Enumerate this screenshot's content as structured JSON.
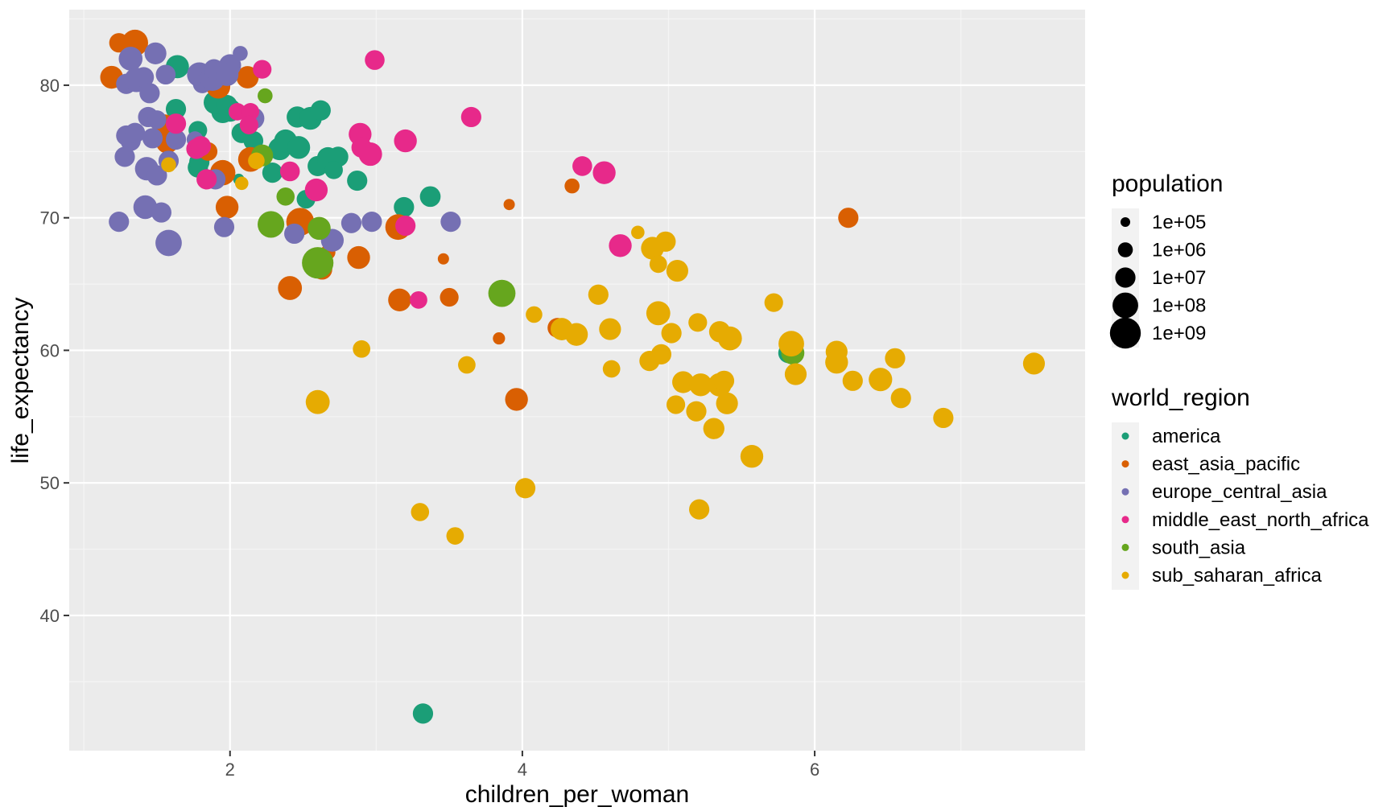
{
  "chart_data": {
    "type": "scatter",
    "title": "",
    "xlabel": "children_per_woman",
    "ylabel": "life_expectancy",
    "xlim": [
      0.9,
      7.85
    ],
    "ylim": [
      29.8,
      85.7
    ],
    "x_ticks": [
      2,
      4,
      6
    ],
    "y_ticks": [
      40,
      50,
      60,
      70,
      80
    ],
    "x_tick_labels": [
      "2",
      "4",
      "6"
    ],
    "y_tick_labels": [
      "40",
      "50",
      "60",
      "70",
      "80"
    ],
    "grid": true,
    "legend_position": "right",
    "size_legend": {
      "title": "population",
      "entries": [
        {
          "label": "1e+05",
          "value": 100000
        },
        {
          "label": "1e+06",
          "value": 1000000
        },
        {
          "label": "1e+07",
          "value": 10000000
        },
        {
          "label": "1e+08",
          "value": 100000000
        },
        {
          "label": "1e+09",
          "value": 1000000000
        }
      ]
    },
    "color_legend": {
      "title": "world_region",
      "entries": [
        {
          "name": "america",
          "color": "#1B9E77"
        },
        {
          "name": "east_asia_pacific",
          "color": "#D95F02"
        },
        {
          "name": "europe_central_asia",
          "color": "#7570B3"
        },
        {
          "name": "middle_east_north_africa",
          "color": "#E7298A"
        },
        {
          "name": "south_asia",
          "color": "#66A61E"
        },
        {
          "name": "sub_saharan_africa",
          "color": "#E6AB02"
        }
      ]
    },
    "series": [
      {
        "name": "america",
        "color": "#1B9E77",
        "points": [
          [
            1.64,
            81.4,
            35000000.0
          ],
          [
            1.78,
            76.6,
            5000000.0
          ],
          [
            1.78,
            73.8,
            10000000.0
          ],
          [
            1.63,
            78.2,
            10000000.0
          ],
          [
            1.79,
            74.2,
            10000000.0
          ],
          [
            1.95,
            78.0,
            30000000.0
          ],
          [
            1.9,
            78.7,
            40000000.0
          ],
          [
            2.0,
            78.1,
            30000000.0
          ],
          [
            1.98,
            78.5,
            10000000.0
          ],
          [
            2.08,
            76.4,
            10000000.0
          ],
          [
            2.16,
            75.8,
            8000000.0
          ],
          [
            2.29,
            73.4,
            10000000.0
          ],
          [
            2.34,
            75.2,
            30000000.0
          ],
          [
            2.38,
            75.8,
            30000000.0
          ],
          [
            2.46,
            77.6,
            15000000.0
          ],
          [
            2.47,
            75.3,
            30000000.0
          ],
          [
            2.55,
            77.5,
            30000000.0
          ],
          [
            2.62,
            78.1,
            10000000.0
          ],
          [
            2.6,
            73.9,
            10000000.0
          ],
          [
            2.68,
            74.5,
            10000000.0
          ],
          [
            2.67,
            74.5,
            20000000.0
          ],
          [
            2.74,
            74.6,
            10000000.0
          ],
          [
            2.71,
            73.6,
            4000000.0
          ],
          [
            2.87,
            72.8,
            10000000.0
          ],
          [
            2.52,
            71.4,
            5000000.0
          ],
          [
            2.06,
            72.9,
            200000.0
          ],
          [
            3.19,
            70.8,
            10000000.0
          ],
          [
            3.37,
            71.6,
            12000000.0
          ],
          [
            5.82,
            59.8,
            10000000.0
          ],
          [
            3.32,
            32.6,
            10000000.0
          ]
        ]
      },
      {
        "name": "east_asia_pacific",
        "color": "#D95F02",
        "points": [
          [
            1.19,
            80.6,
            30000000.0
          ],
          [
            1.24,
            83.2,
            7000000.0
          ],
          [
            1.35,
            83.2,
            130000000.0
          ],
          [
            1.55,
            76.9,
            50000000.0
          ],
          [
            1.92,
            79.9,
            50000000.0
          ],
          [
            2.12,
            80.6,
            24000000.0
          ],
          [
            1.95,
            73.4,
            90000000.0
          ],
          [
            2.14,
            74.4,
            69000000.0
          ],
          [
            1.98,
            70.8,
            30000000.0
          ],
          [
            2.48,
            69.7,
            260000000.0
          ],
          [
            2.41,
            64.7,
            50000000.0
          ],
          [
            2.63,
            66.1,
            10000000.0
          ],
          [
            2.88,
            67.0,
            30000000.0
          ],
          [
            3.15,
            69.3,
            100000000.0
          ],
          [
            3.16,
            63.8,
            30000000.0
          ],
          [
            1.85,
            75.0,
            5000000.0
          ],
          [
            2.67,
            67.4,
            1000000.0
          ],
          [
            3.96,
            56.3,
            30000000.0
          ],
          [
            4.24,
            61.7,
            8000000.0
          ],
          [
            4.34,
            72.4,
            1000000.0
          ],
          [
            3.5,
            64.0,
            5000000.0
          ],
          [
            3.84,
            60.9,
            300000.0
          ],
          [
            3.46,
            66.9,
            200000.0
          ],
          [
            3.91,
            71.0,
            200000.0
          ],
          [
            6.23,
            70.0,
            10000000.0
          ],
          [
            1.57,
            75.7,
            25000000.0
          ]
        ]
      },
      {
        "name": "europe_central_asia",
        "color": "#7570B3",
        "points": [
          [
            1.29,
            80.1,
            10000000.0
          ],
          [
            1.32,
            82.0,
            46000000.0
          ],
          [
            1.36,
            80.4,
            60000000.0
          ],
          [
            1.41,
            80.6,
            10000000.0
          ],
          [
            1.49,
            82.4,
            20000000.0
          ],
          [
            1.45,
            79.4,
            10000000.0
          ],
          [
            1.56,
            80.8,
            8000000.0
          ],
          [
            1.79,
            80.8,
            65000000.0
          ],
          [
            1.81,
            80.1,
            5000000.0
          ],
          [
            1.88,
            80.5,
            65000000.0
          ],
          [
            1.89,
            81.2,
            10000000.0
          ],
          [
            2.0,
            81.5,
            23000000.0
          ],
          [
            1.98,
            80.8,
            30000000.0
          ],
          [
            2.07,
            82.4,
            1000000.0
          ],
          [
            1.29,
            76.2,
            10000000.0
          ],
          [
            1.32,
            75.8,
            10000000.0
          ],
          [
            1.35,
            76.4,
            10000000.0
          ],
          [
            1.28,
            74.6,
            10000000.0
          ],
          [
            1.44,
            77.6,
            10000000.0
          ],
          [
            1.47,
            76.0,
            10000000.0
          ],
          [
            1.5,
            77.4,
            5000000.0
          ],
          [
            1.43,
            73.7,
            40000000.0
          ],
          [
            1.5,
            73.2,
            10000000.0
          ],
          [
            1.58,
            74.3,
            10000000.0
          ],
          [
            1.63,
            75.9,
            10000000.0
          ],
          [
            1.9,
            72.9,
            10000000.0
          ],
          [
            2.16,
            77.5,
            20000000.0
          ],
          [
            1.42,
            70.8,
            44000000.0
          ],
          [
            1.53,
            70.4,
            10000000.0
          ],
          [
            1.58,
            68.1,
            140000000.0
          ],
          [
            1.24,
            69.7,
            10000000.0
          ],
          [
            1.96,
            69.3,
            10000000.0
          ],
          [
            2.44,
            68.8,
            10000000.0
          ],
          [
            2.7,
            68.3,
            30000000.0
          ],
          [
            2.83,
            69.6,
            10000000.0
          ],
          [
            2.97,
            69.7,
            10000000.0
          ],
          [
            3.51,
            69.7,
            10000000.0
          ],
          [
            1.76,
            75.9,
            2000000.0
          ]
        ]
      },
      {
        "name": "middle_east_north_africa",
        "color": "#E7298A",
        "points": [
          [
            2.99,
            81.9,
            8000000.0
          ],
          [
            2.22,
            81.2,
            5000000.0
          ],
          [
            1.63,
            77.1,
            10000000.0
          ],
          [
            1.77,
            75.2,
            10000000.0
          ],
          [
            1.8,
            75.4,
            10000000.0
          ],
          [
            2.05,
            78.0,
            3000000.0
          ],
          [
            2.14,
            78.0,
            3000000.0
          ],
          [
            2.13,
            77.0,
            5000000.0
          ],
          [
            2.41,
            73.5,
            8000000.0
          ],
          [
            2.59,
            72.1,
            30000000.0
          ],
          [
            1.84,
            72.9,
            10000000.0
          ],
          [
            2.89,
            76.3,
            30000000.0
          ],
          [
            2.9,
            75.3,
            10000000.0
          ],
          [
            2.96,
            74.8,
            40000000.0
          ],
          [
            3.2,
            75.8,
            30000000.0
          ],
          [
            3.2,
            69.4,
            10000000.0
          ],
          [
            3.65,
            77.6,
            10000000.0
          ],
          [
            3.29,
            63.8,
            3000000.0
          ],
          [
            4.41,
            73.9,
            8000000.0
          ],
          [
            4.56,
            73.4,
            30000000.0
          ],
          [
            4.67,
            67.9,
            30000000.0
          ]
        ]
      },
      {
        "name": "south_asia",
        "color": "#66A61E",
        "points": [
          [
            2.24,
            79.2,
            1000000.0
          ],
          [
            2.22,
            74.7,
            20000000.0
          ],
          [
            2.28,
            69.5,
            160000000.0
          ],
          [
            2.38,
            71.6,
            4000000.0
          ],
          [
            2.61,
            69.2,
            32000000.0
          ],
          [
            2.6,
            66.6,
            1300000000.0
          ],
          [
            3.86,
            64.3,
            200000000.0
          ],
          [
            5.85,
            59.8,
            35000000.0
          ]
        ]
      },
      {
        "name": "sub_saharan_africa",
        "color": "#E6AB02",
        "points": [
          [
            1.58,
            74.0,
            1000000.0
          ],
          [
            2.18,
            74.3,
            2000000.0
          ],
          [
            2.08,
            72.6,
            500000.0
          ],
          [
            2.9,
            60.1,
            3000000.0
          ],
          [
            2.6,
            56.1,
            50000000.0
          ],
          [
            3.3,
            47.8,
            4000000.0
          ],
          [
            3.54,
            46.0,
            3000000.0
          ],
          [
            3.62,
            58.9,
            3000000.0
          ],
          [
            4.02,
            49.6,
            10000000.0
          ],
          [
            4.08,
            62.7,
            2000000.0
          ],
          [
            4.27,
            61.6,
            25000000.0
          ],
          [
            4.37,
            61.2,
            30000000.0
          ],
          [
            4.52,
            64.2,
            10000000.0
          ],
          [
            4.61,
            58.6,
            3000000.0
          ],
          [
            4.6,
            61.6,
            20000000.0
          ],
          [
            4.79,
            68.9,
            500000.0
          ],
          [
            4.87,
            59.2,
            10000000.0
          ],
          [
            4.89,
            67.7,
            30000000.0
          ],
          [
            4.93,
            66.5,
            3000000.0
          ],
          [
            4.95,
            59.7,
            10000000.0
          ],
          [
            4.93,
            62.8,
            50000000.0
          ],
          [
            4.98,
            68.2,
            10000000.0
          ],
          [
            5.06,
            66.0,
            20000000.0
          ],
          [
            5.02,
            61.3,
            10000000.0
          ],
          [
            5.05,
            55.9,
            5000000.0
          ],
          [
            5.1,
            57.6,
            20000000.0
          ],
          [
            5.19,
            55.4,
            10000000.0
          ],
          [
            5.2,
            62.1,
            5000000.0
          ],
          [
            5.22,
            57.4,
            30000000.0
          ],
          [
            5.31,
            54.1,
            15000000.0
          ],
          [
            5.35,
            61.4,
            15000000.0
          ],
          [
            5.35,
            57.4,
            40000000.0
          ],
          [
            5.38,
            57.7,
            10000000.0
          ],
          [
            5.42,
            60.9,
            50000000.0
          ],
          [
            5.4,
            56.0,
            20000000.0
          ],
          [
            5.21,
            48.0,
            10000000.0
          ],
          [
            5.57,
            52.0,
            30000000.0
          ],
          [
            5.72,
            63.6,
            5000000.0
          ],
          [
            5.84,
            60.5,
            100000000.0
          ],
          [
            5.87,
            58.2,
            20000000.0
          ],
          [
            6.15,
            59.9,
            20000000.0
          ],
          [
            6.15,
            59.1,
            30000000.0
          ],
          [
            6.26,
            57.7,
            10000000.0
          ],
          [
            6.45,
            57.8,
            40000000.0
          ],
          [
            6.55,
            59.4,
            10000000.0
          ],
          [
            6.59,
            56.4,
            10000000.0
          ],
          [
            6.88,
            54.9,
            10000000.0
          ],
          [
            7.5,
            59.0,
            20000000.0
          ]
        ]
      }
    ]
  }
}
